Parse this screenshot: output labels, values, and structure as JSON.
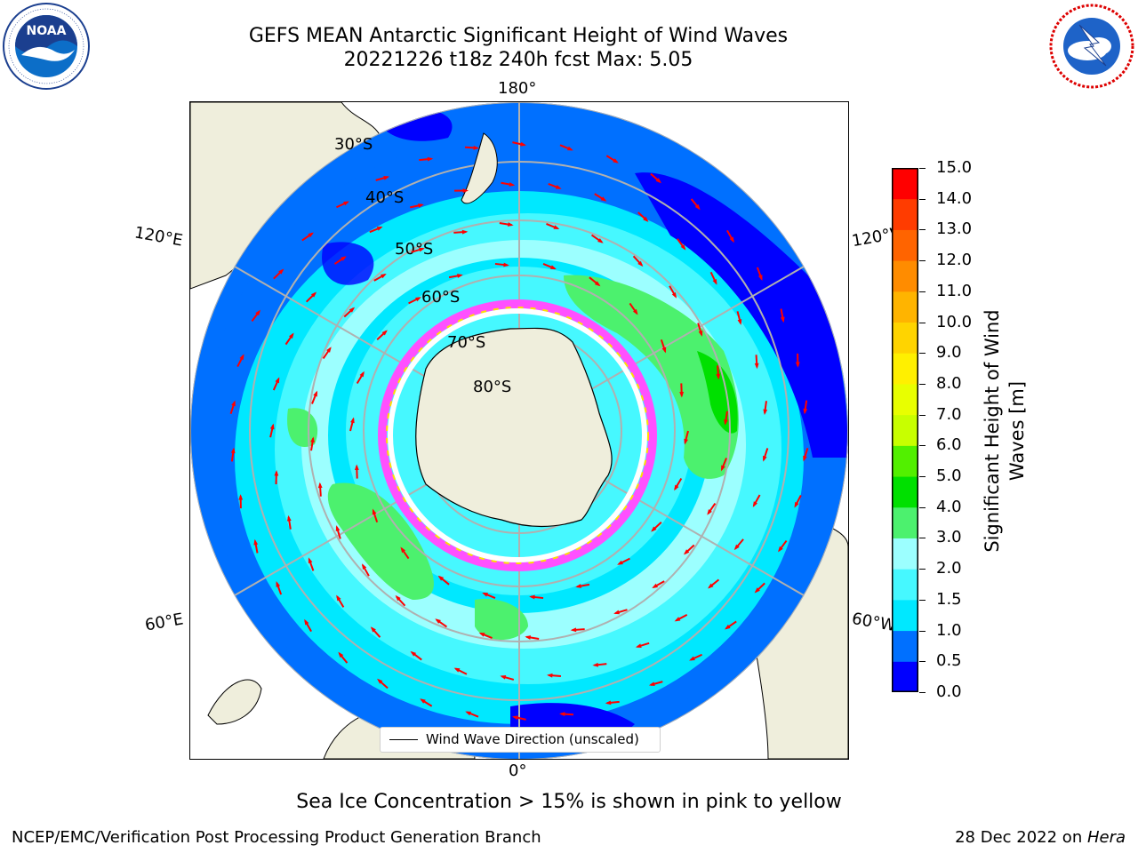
{
  "header": {
    "title_line1": "GEFS MEAN Antarctic Significant Height of Wind Waves",
    "title_line2": "20221226 t18z 240h fcst   Max: 5.05"
  },
  "logos": {
    "noaa": {
      "text": "NOAA",
      "ring_text": "NATIONAL OCEANIC AND ATMOSPHERIC ADMINISTRATION · U.S. DEPARTMENT OF COMMERCE",
      "icon": "noaa-gull-icon"
    },
    "nws": {
      "ring_text": "NATIONAL WEATHER SERVICE",
      "icon": "nws-lightning-icon"
    }
  },
  "map": {
    "projection": "south-polar-stereographic",
    "lon_labels": {
      "top": "180°",
      "bottom": "0°",
      "upper_left": "120°E",
      "upper_right": "120°W",
      "lower_left": "60°E",
      "lower_right": "60°W"
    },
    "lat_labels": [
      "30°S",
      "40°S",
      "50°S",
      "60°S",
      "70°S",
      "80°S"
    ],
    "legend": "Wind Wave Direction (unscaled)",
    "arrow_color": "#ff0000",
    "land_color": "#efeedc"
  },
  "colorbar": {
    "label": "Significant Height of Wind Waves [m]",
    "ticks": [
      "0.0",
      "0.5",
      "1.0",
      "1.5",
      "2.0",
      "3.0",
      "4.0",
      "5.0",
      "6.0",
      "7.0",
      "8.0",
      "9.0",
      "10.0",
      "11.0",
      "12.0",
      "13.0",
      "14.0",
      "15.0"
    ],
    "colors": [
      "#0000ff",
      "#0070ff",
      "#00e8ff",
      "#46f8ff",
      "#9cffff",
      "#4cf16e",
      "#00e000",
      "#52f000",
      "#c8ff00",
      "#e8ff00",
      "#fff000",
      "#ffd400",
      "#ffb400",
      "#ff8c00",
      "#ff6400",
      "#ff3c00",
      "#ff0000"
    ]
  },
  "note": "Sea Ice Concentration > 15% is shown in pink to yellow",
  "footer": {
    "left": "NCEP/EMC/Verification Post Processing Product Generation Branch",
    "date": "28 Dec 2022 on ",
    "host": "Hera"
  }
}
